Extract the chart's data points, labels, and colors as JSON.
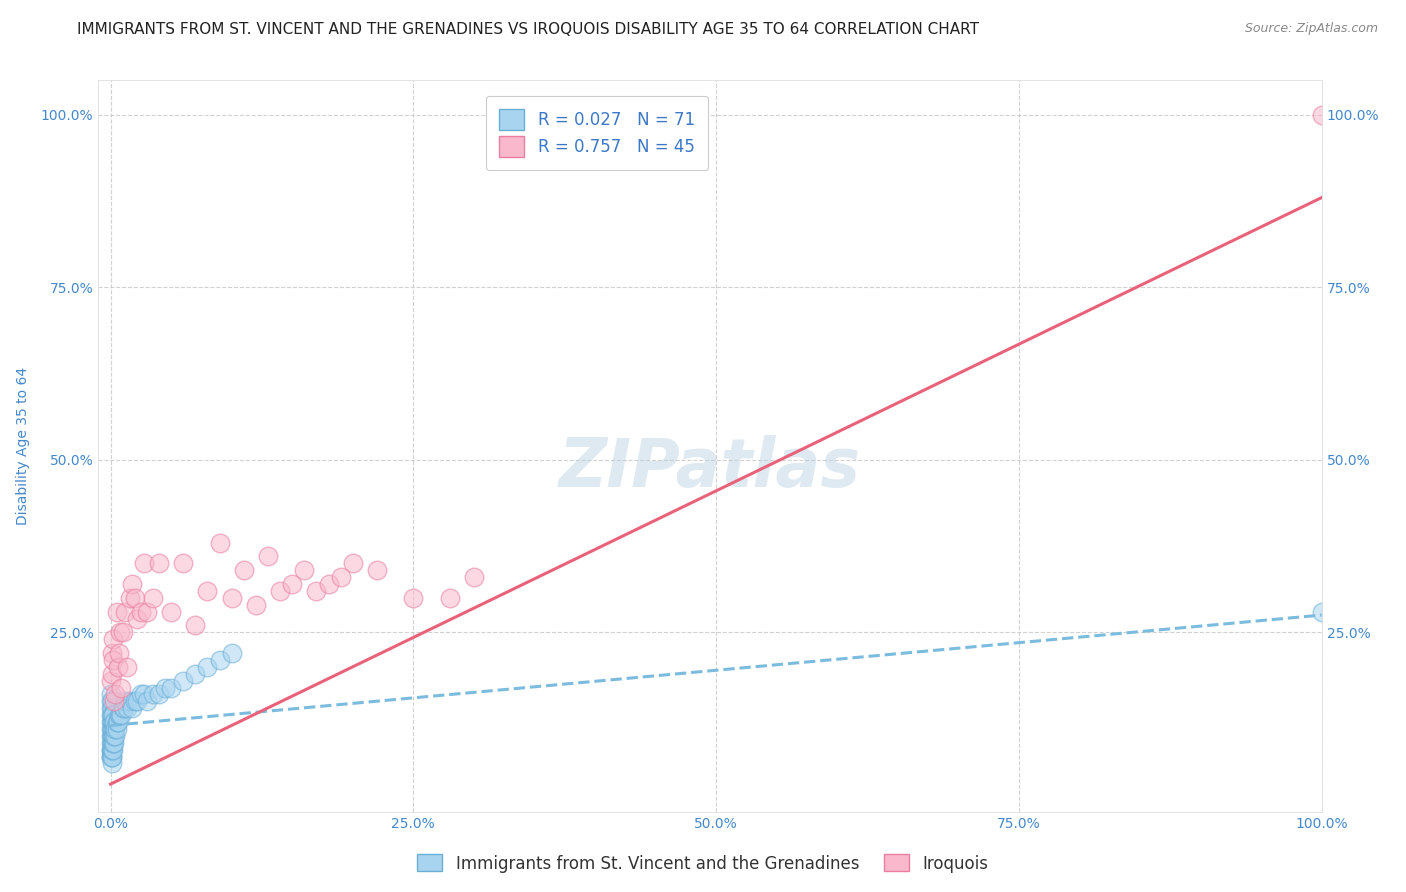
{
  "title": "IMMIGRANTS FROM ST. VINCENT AND THE GRENADINES VS IROQUOIS DISABILITY AGE 35 TO 64 CORRELATION CHART",
  "source": "Source: ZipAtlas.com",
  "ylabel": "Disability Age 35 to 64",
  "watermark": "ZIPatlas",
  "blue_R": 0.027,
  "blue_N": 71,
  "pink_R": 0.757,
  "pink_N": 45,
  "blue_color": "#a8d4f0",
  "pink_color": "#f9b8cb",
  "blue_edge_color": "#6aaed6",
  "pink_edge_color": "#e87fa0",
  "blue_line_color": "#7bbcde",
  "pink_line_color": "#e8627a",
  "legend_color": "#3c78c8",
  "axis_tick_color": "#4488cc",
  "background_color": "#ffffff",
  "grid_color": "#cccccc",
  "blue_scatter_x": [
    0.0,
    0.0,
    0.0,
    0.0,
    0.0,
    0.0,
    0.0,
    0.0,
    0.0,
    0.0,
    0.0,
    0.0,
    0.001,
    0.001,
    0.001,
    0.001,
    0.001,
    0.001,
    0.001,
    0.001,
    0.001,
    0.001,
    0.001,
    0.001,
    0.001,
    0.001,
    0.001,
    0.001,
    0.001,
    0.001,
    0.002,
    0.002,
    0.002,
    0.002,
    0.002,
    0.002,
    0.002,
    0.002,
    0.003,
    0.003,
    0.003,
    0.003,
    0.004,
    0.004,
    0.005,
    0.005,
    0.006,
    0.007,
    0.008,
    0.009,
    0.01,
    0.011,
    0.012,
    0.014,
    0.016,
    0.018,
    0.02,
    0.022,
    0.025,
    0.028,
    0.03,
    0.035,
    0.04,
    0.045,
    0.05,
    0.06,
    0.07,
    0.08,
    0.09,
    0.1,
    1.0
  ],
  "blue_scatter_y": [
    0.07,
    0.08,
    0.09,
    0.1,
    0.11,
    0.12,
    0.13,
    0.14,
    0.15,
    0.16,
    0.07,
    0.08,
    0.08,
    0.09,
    0.1,
    0.11,
    0.12,
    0.13,
    0.14,
    0.15,
    0.07,
    0.08,
    0.09,
    0.1,
    0.11,
    0.12,
    0.13,
    0.06,
    0.07,
    0.08,
    0.09,
    0.1,
    0.11,
    0.12,
    0.13,
    0.08,
    0.09,
    0.1,
    0.09,
    0.1,
    0.11,
    0.12,
    0.1,
    0.11,
    0.11,
    0.12,
    0.12,
    0.13,
    0.13,
    0.13,
    0.14,
    0.14,
    0.15,
    0.14,
    0.15,
    0.14,
    0.15,
    0.15,
    0.16,
    0.16,
    0.15,
    0.16,
    0.16,
    0.17,
    0.17,
    0.18,
    0.19,
    0.2,
    0.21,
    0.22,
    0.28
  ],
  "pink_scatter_x": [
    0.0,
    0.001,
    0.001,
    0.002,
    0.002,
    0.003,
    0.004,
    0.005,
    0.006,
    0.007,
    0.008,
    0.009,
    0.01,
    0.012,
    0.014,
    0.016,
    0.018,
    0.02,
    0.022,
    0.025,
    0.028,
    0.03,
    0.035,
    0.04,
    0.05,
    0.06,
    0.07,
    0.08,
    0.09,
    0.1,
    0.11,
    0.12,
    0.13,
    0.14,
    0.15,
    0.16,
    0.17,
    0.18,
    0.19,
    0.2,
    0.22,
    0.25,
    0.28,
    0.3,
    1.0
  ],
  "pink_scatter_y": [
    0.18,
    0.19,
    0.22,
    0.21,
    0.24,
    0.15,
    0.16,
    0.28,
    0.2,
    0.22,
    0.25,
    0.17,
    0.25,
    0.28,
    0.2,
    0.3,
    0.32,
    0.3,
    0.27,
    0.28,
    0.35,
    0.28,
    0.3,
    0.35,
    0.28,
    0.35,
    0.26,
    0.31,
    0.38,
    0.3,
    0.34,
    0.29,
    0.36,
    0.31,
    0.32,
    0.34,
    0.31,
    0.32,
    0.33,
    0.35,
    0.34,
    0.3,
    0.3,
    0.33,
    1.0
  ],
  "xlim": [
    -0.01,
    1.0
  ],
  "ylim": [
    -0.01,
    1.05
  ],
  "xticks": [
    0.0,
    0.25,
    0.5,
    0.75,
    1.0
  ],
  "xticklabels": [
    "0.0%",
    "25.0%",
    "50.0%",
    "75.0%",
    "100.0%"
  ],
  "yticks": [
    0.25,
    0.5,
    0.75,
    1.0
  ],
  "yticklabels": [
    "25.0%",
    "50.0%",
    "75.0%",
    "100.0%"
  ],
  "right_yticks": [
    0.25,
    0.5,
    0.75,
    1.0
  ],
  "right_yticklabels": [
    "25.0%",
    "50.0%",
    "75.0%",
    "100.0%"
  ],
  "blue_trend_x0": 0.0,
  "blue_trend_x1": 1.0,
  "blue_trend_y0": 0.115,
  "blue_trend_y1": 0.275,
  "pink_trend_x0": 0.0,
  "pink_trend_x1": 1.0,
  "pink_trend_y0": 0.03,
  "pink_trend_y1": 0.88,
  "legend_label_blue": "Immigrants from St. Vincent and the Grenadines",
  "legend_label_pink": "Iroquois",
  "title_fontsize": 11,
  "source_fontsize": 9,
  "axis_label_fontsize": 10,
  "tick_fontsize": 10,
  "legend_fontsize": 12,
  "watermark_fontsize": 48,
  "watermark_color": "#b8cfe0",
  "watermark_alpha": 0.45
}
